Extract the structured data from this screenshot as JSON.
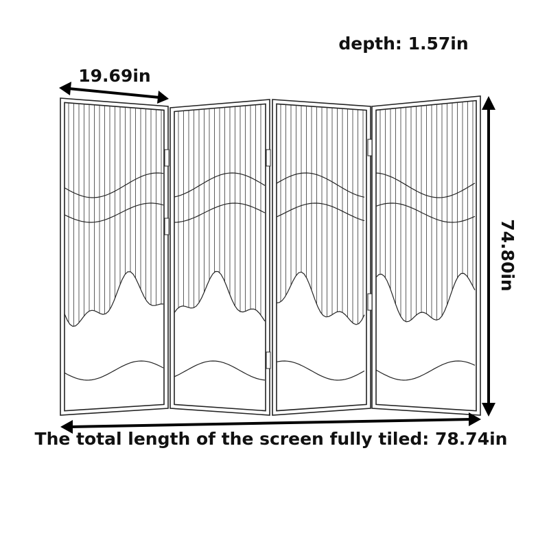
{
  "labels": {
    "depth": "depth: 1.57in",
    "panel_width": "19.69in",
    "height": "74.80in",
    "total_length": "The total length of the screen fully tiled: 78.74in"
  }
}
